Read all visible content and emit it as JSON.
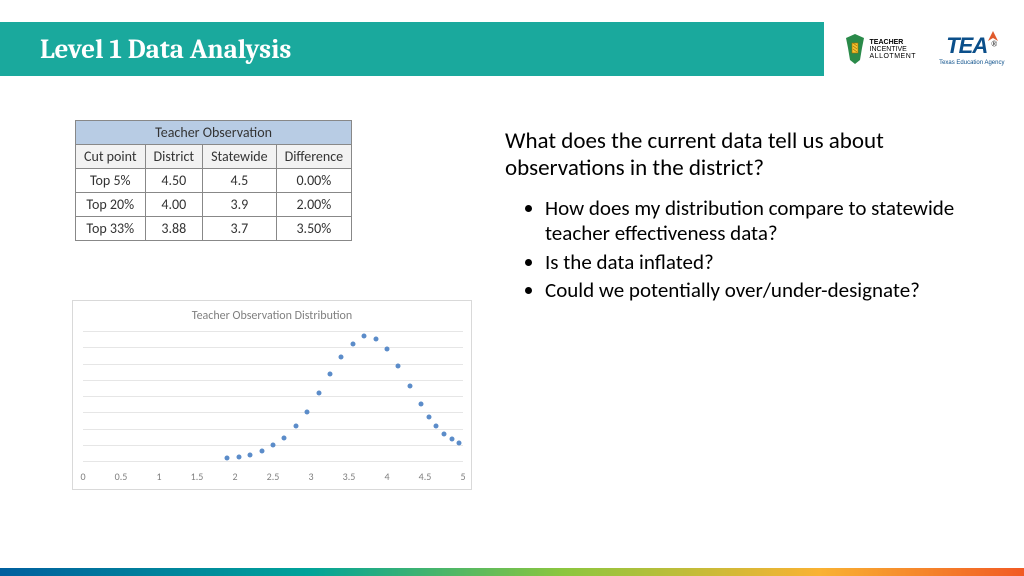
{
  "header": {
    "title": "Level 1 Data Analysis",
    "bg": "#1aa99d"
  },
  "logos": {
    "ti": {
      "line1": "TEACHER",
      "line2": "INCENTIVE",
      "line3": "ALLOTMENT"
    },
    "tea": {
      "main": "TEA",
      "sub": "Texas Education Agency"
    }
  },
  "table": {
    "merged_header": "Teacher Observation",
    "columns": [
      "Cut point",
      "District",
      "Statewide",
      "Difference"
    ],
    "rows": [
      [
        "Top 5%",
        "4.50",
        "4.5",
        "0.00%"
      ],
      [
        "Top 20%",
        "4.00",
        "3.9",
        "2.00%"
      ],
      [
        "Top 33%",
        "3.88",
        "3.7",
        "3.50%"
      ]
    ],
    "header_bg": "#b8cce4",
    "border_color": "#888888"
  },
  "chart": {
    "type": "scatter",
    "title": "Teacher Observation Distribution",
    "title_color": "#808080",
    "title_fontsize": 12,
    "xlim": [
      0,
      5
    ],
    "x_ticks": [
      0,
      0.5,
      1,
      1.5,
      2,
      2.5,
      3,
      3.5,
      4,
      4.5,
      5
    ],
    "ylim": [
      0,
      1
    ],
    "n_gridlines": 8,
    "grid_color": "#e6e6e6",
    "marker_color": "#5b8cc9",
    "marker_size": 5,
    "points": [
      {
        "x": 1.9,
        "y": 0.02
      },
      {
        "x": 2.05,
        "y": 0.03
      },
      {
        "x": 2.2,
        "y": 0.05
      },
      {
        "x": 2.35,
        "y": 0.08
      },
      {
        "x": 2.5,
        "y": 0.12
      },
      {
        "x": 2.65,
        "y": 0.18
      },
      {
        "x": 2.8,
        "y": 0.27
      },
      {
        "x": 2.95,
        "y": 0.38
      },
      {
        "x": 3.1,
        "y": 0.52
      },
      {
        "x": 3.25,
        "y": 0.67
      },
      {
        "x": 3.4,
        "y": 0.8
      },
      {
        "x": 3.55,
        "y": 0.9
      },
      {
        "x": 3.7,
        "y": 0.96
      },
      {
        "x": 3.85,
        "y": 0.94
      },
      {
        "x": 4.0,
        "y": 0.86
      },
      {
        "x": 4.15,
        "y": 0.73
      },
      {
        "x": 4.3,
        "y": 0.58
      },
      {
        "x": 4.45,
        "y": 0.44
      },
      {
        "x": 4.55,
        "y": 0.34
      },
      {
        "x": 4.65,
        "y": 0.27
      },
      {
        "x": 4.75,
        "y": 0.21
      },
      {
        "x": 4.85,
        "y": 0.17
      },
      {
        "x": 4.95,
        "y": 0.14
      }
    ]
  },
  "text": {
    "question": "What does the current data tell us about observations in the district?",
    "bullets": [
      "How does my distribution compare to statewide teacher effectiveness data?",
      "Is the data inflated?",
      "Could we potentially over/under-designate?"
    ]
  },
  "footer_gradient": [
    "#005f9e",
    "#00a39a",
    "#8cc63f",
    "#f9b233",
    "#f15a24"
  ]
}
